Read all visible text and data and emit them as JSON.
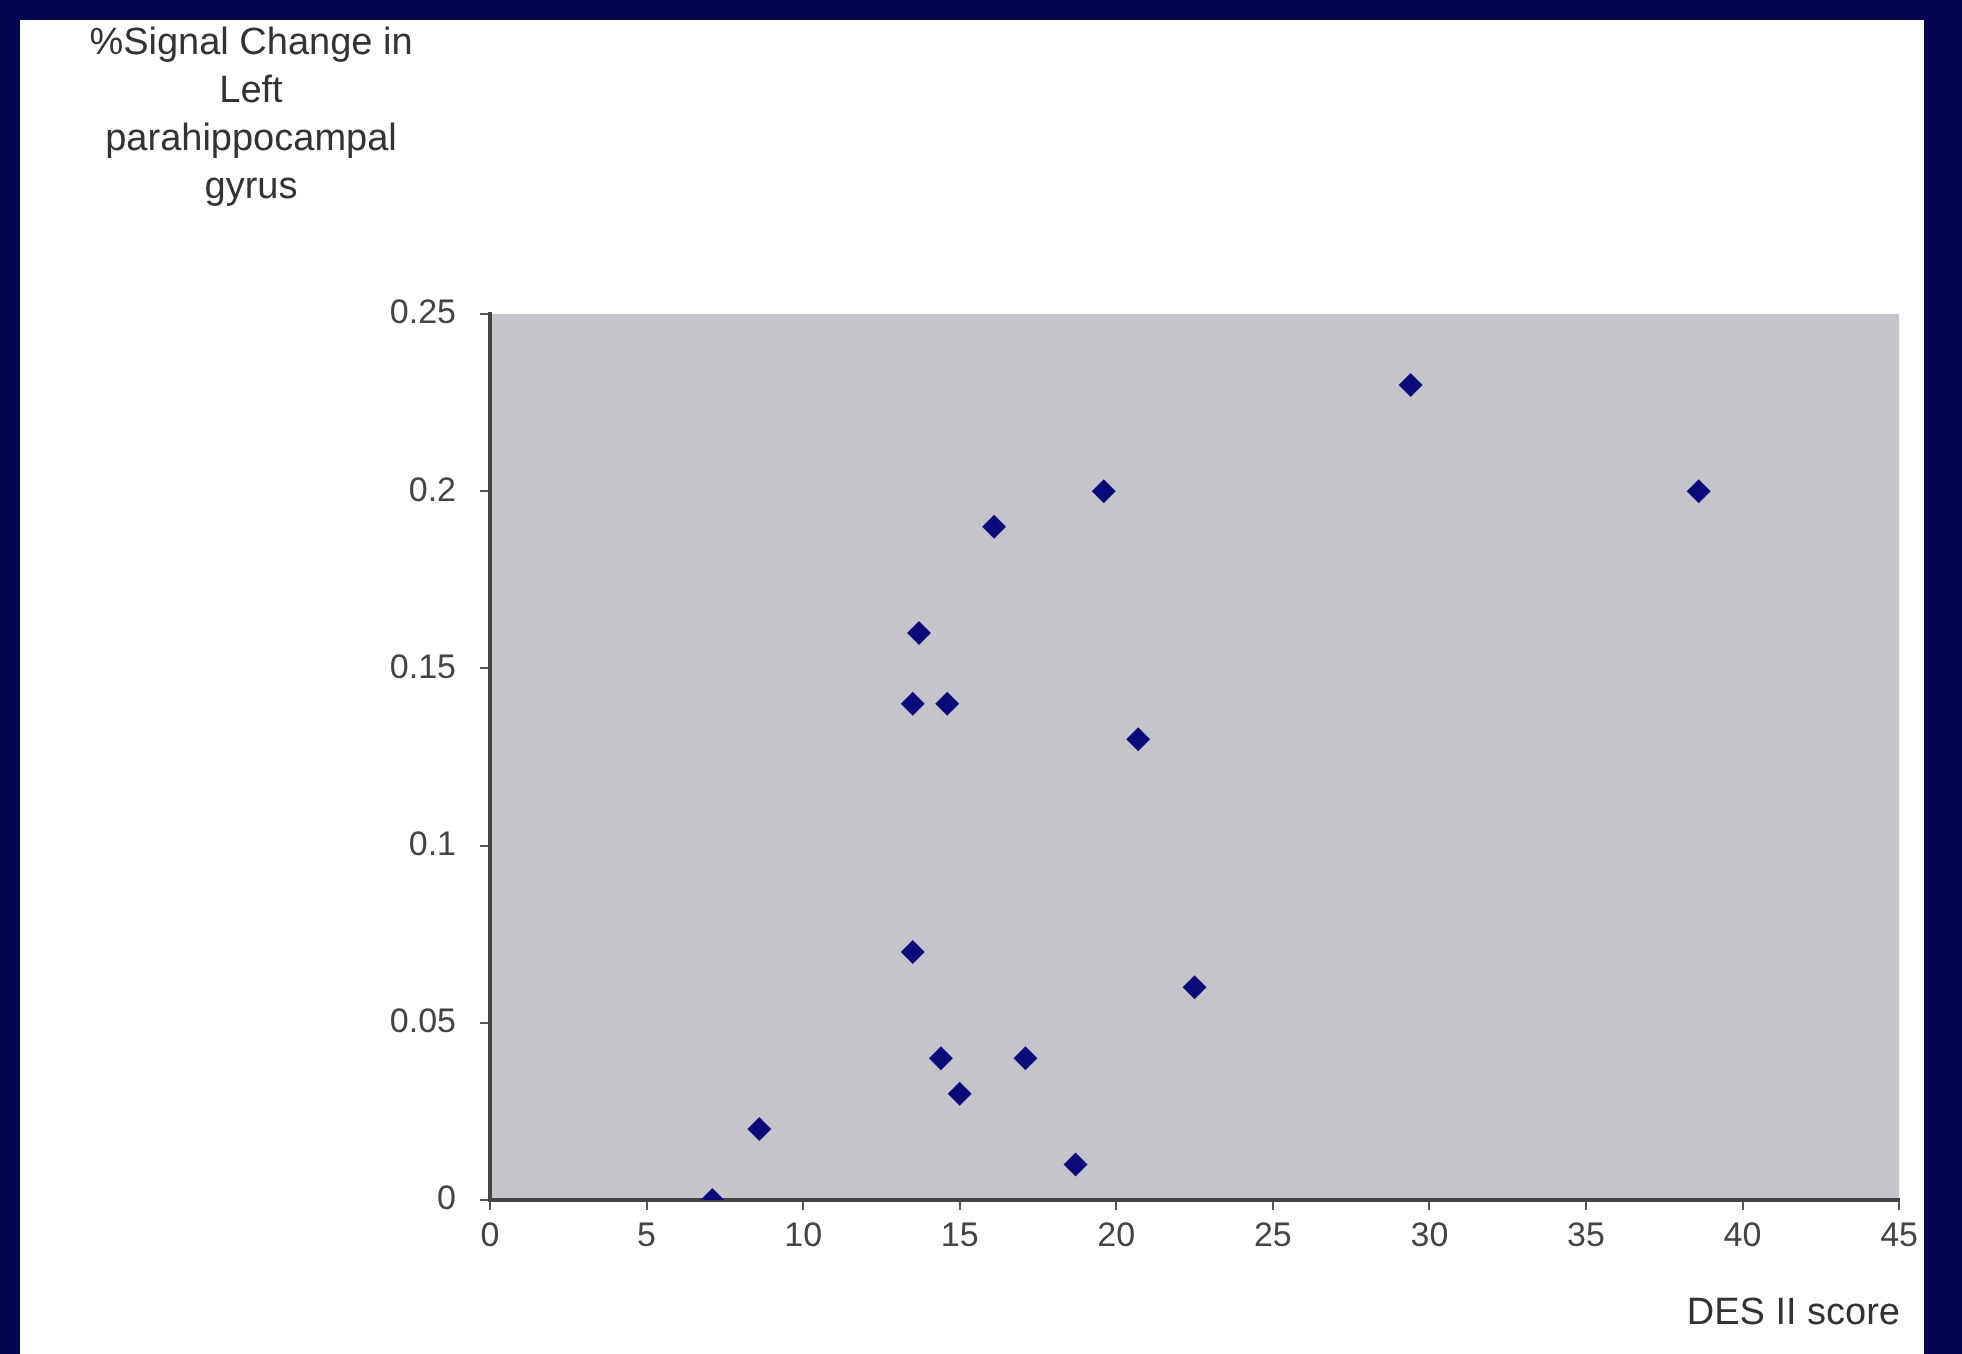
{
  "chart_data": {
    "type": "scatter",
    "ylabel": "%Signal Change in Left parahippocampal gyrus",
    "xlabel": "DES II score",
    "x": [
      7.1,
      8.6,
      13.7,
      13.5,
      14.6,
      13.5,
      14.4,
      15,
      16.1,
      17.1,
      18.7,
      19.6,
      20.7,
      22.5,
      29.4,
      38.6
    ],
    "values": [
      0,
      0.02,
      0.16,
      0.14,
      0.14,
      0.07,
      0.04,
      0.03,
      0.19,
      0.04,
      0.01,
      0.2,
      0.13,
      0.06,
      0.23,
      0.2
    ],
    "color": "#0a0a7a",
    "marker": "diamond",
    "xlim": [
      0,
      45
    ],
    "xticks": [
      0,
      5,
      10,
      15,
      20,
      25,
      30,
      35,
      40,
      45
    ],
    "ylim": [
      0,
      0.25
    ],
    "yticks": [
      0,
      0.05,
      0.1,
      0.15,
      0.2,
      0.25
    ],
    "grid": false
  }
}
